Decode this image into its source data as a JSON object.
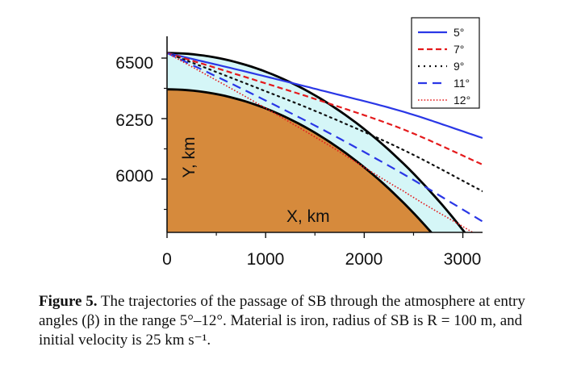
{
  "chart_data": {
    "type": "line",
    "xlabel": "X, km",
    "ylabel": "Y, km",
    "xlim": [
      0,
      3200
    ],
    "ylim": [
      5780,
      6590
    ],
    "x_ticks": [
      "0",
      "1000",
      "2000",
      "3000"
    ],
    "y_ticks": [
      "6000",
      "6250",
      "6500"
    ],
    "regions": [
      {
        "name": "atmosphere",
        "color": "#d5f6f7",
        "bounds": "between outer and inner boundary arcs"
      },
      {
        "name": "planet",
        "color": "#d68a3c"
      }
    ],
    "boundaries": [
      {
        "kind": "inner",
        "radius_km": 6371,
        "color": "#000000"
      },
      {
        "kind": "outer",
        "radius_km": 6521,
        "color": "#000000"
      }
    ],
    "series": [
      {
        "name": "5°",
        "color": "#2a37e6",
        "style": "solid",
        "x": [
          0,
          800,
          1600,
          2400,
          3200
        ],
        "y": [
          6521,
          6444,
          6363,
          6278,
          6170
        ]
      },
      {
        "name": "7°",
        "color": "#e41a1c",
        "style": "dash",
        "x": [
          0,
          800,
          1600,
          2400,
          3200
        ],
        "y": [
          6521,
          6421,
          6318,
          6205,
          6060
        ]
      },
      {
        "name": "9°",
        "color": "#111111",
        "style": "dot",
        "x": [
          0,
          800,
          1600,
          2400,
          3200
        ],
        "y": [
          6521,
          6395,
          6265,
          6120,
          5950
        ]
      },
      {
        "name": "11°",
        "color": "#2a37e6",
        "style": "longdash",
        "x": [
          0,
          800,
          1600,
          2400,
          3200
        ],
        "y": [
          6521,
          6365,
          6200,
          6020,
          5825
        ]
      },
      {
        "name": "12°",
        "color": "#e41a1c",
        "style": "finedot",
        "x": [
          0,
          800,
          1600,
          2400,
          3100
        ],
        "y": [
          6521,
          6340,
          6150,
          5950,
          5780
        ]
      }
    ],
    "legend": {
      "placement": "top-right"
    }
  },
  "caption": {
    "label": "Figure 5.",
    "text": "The trajectories of the passage of SB through the atmosphere at entry angles (β) in the range 5°–12°. Material is iron, radius of SB is R = 100 m, and initial velocity is 25 km s⁻¹."
  }
}
